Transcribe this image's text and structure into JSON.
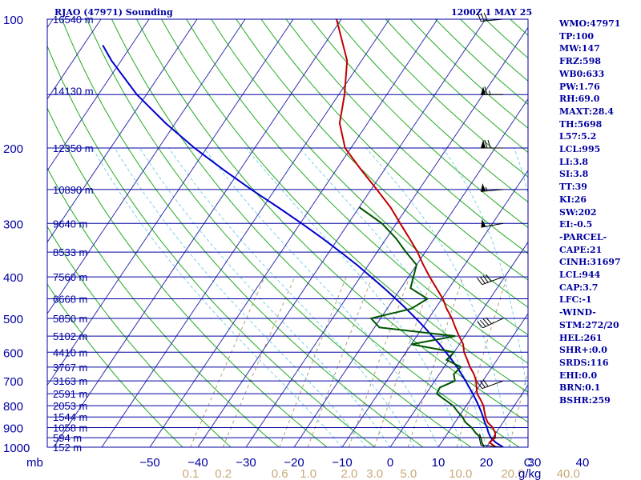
{
  "header": {
    "station": "RJAO (47971) Sounding",
    "time": "1200Z  1 MAY 25"
  },
  "indices": [
    "WMO:47971",
    "TP:100",
    "MW:147",
    "FRZ:598",
    "WB0:633",
    "PW:1.76",
    "RH:69.0",
    "MAXT:28.4",
    "TH:5698",
    "L57:5.2",
    "LCL:995",
    "LI:3.8",
    "SI:3.8",
    "TT:39",
    "KI:26",
    "SW:202",
    "EI:-0.5",
    "-PARCEL-",
    "CAPE:21",
    "CINH:31697",
    "LCL:944",
    "CAP:3.7",
    "LFC:-1",
    "-WIND-",
    "STM:272/20",
    "HEL:261",
    "SHR+:0.0",
    "SRDS:116",
    "EHI:0.0",
    "BRN:0.1",
    "BSHR:259"
  ],
  "colors": {
    "isobar": "#0000a0",
    "isotherm": "#3030b0",
    "dry_adiabat": "#22aa22",
    "moist_adiabat": "#7ad0e8",
    "mixing_ratio": "#b4a078",
    "temperature": "#c00000",
    "dewpoint": "#005500",
    "parcel": "#0000cc",
    "text": "#0000a0",
    "mixing_label": "#c8a878",
    "wind_barb": "#000000"
  },
  "chart_data": {
    "type": "skew-t",
    "pressure_axis_label": "mb",
    "temperature_axis_unit": "C",
    "mixing_ratio_unit": "g/kg",
    "pressure_range": [
      1000,
      100
    ],
    "pressure_ticks": [
      100,
      200,
      300,
      400,
      500,
      600,
      700,
      800,
      900,
      1000
    ],
    "temperature_ticks": [
      -50,
      -40,
      -30,
      -20,
      -10,
      0,
      10,
      20,
      30,
      40
    ],
    "temperature_tick_labels": [
      "−50",
      "−40",
      "−30",
      "−20",
      "−10",
      "0",
      "10",
      "20",
      "30",
      "40"
    ],
    "mixing_ratio_labels": [
      "0.1",
      "0.2",
      "0.6",
      "1.0",
      "2.0",
      "3.0",
      "5.0",
      "10.0",
      "20.0",
      "40.0"
    ],
    "height_labels": [
      {
        "p": 100,
        "label": "16540 m"
      },
      {
        "p": 147,
        "label": "14130 m"
      },
      {
        "p": 200,
        "label": "12350 m"
      },
      {
        "p": 250,
        "label": "10890 m"
      },
      {
        "p": 300,
        "label": "9640 m"
      },
      {
        "p": 350,
        "label": "8533 m"
      },
      {
        "p": 400,
        "label": "7560 m"
      },
      {
        "p": 450,
        "label": "6668 m"
      },
      {
        "p": 500,
        "label": "5850 m"
      },
      {
        "p": 550,
        "label": "5102 m"
      },
      {
        "p": 600,
        "label": "4410 m"
      },
      {
        "p": 650,
        "label": "3767 m"
      },
      {
        "p": 700,
        "label": "3163 m"
      },
      {
        "p": 750,
        "label": "2591 m"
      },
      {
        "p": 800,
        "label": "2053 m"
      },
      {
        "p": 850,
        "label": "1544 m"
      },
      {
        "p": 900,
        "label": "1058 m"
      },
      {
        "p": 950,
        "label": "594 m"
      },
      {
        "p": 1000,
        "label": "152 m"
      }
    ],
    "temperature_profile": [
      [
        1000,
        22
      ],
      [
        975,
        20
      ],
      [
        950,
        20.5
      ],
      [
        925,
        19.8
      ],
      [
        900,
        18.6
      ],
      [
        875,
        16.8
      ],
      [
        850,
        15.6
      ],
      [
        825,
        14.6
      ],
      [
        800,
        13.6
      ],
      [
        775,
        12.2
      ],
      [
        750,
        10.6
      ],
      [
        725,
        9.6
      ],
      [
        700,
        8.6
      ],
      [
        675,
        7.2
      ],
      [
        650,
        5.4
      ],
      [
        625,
        3.8
      ],
      [
        600,
        2.1
      ],
      [
        575,
        0.8
      ],
      [
        550,
        -1.2
      ],
      [
        525,
        -3.2
      ],
      [
        500,
        -5.2
      ],
      [
        475,
        -7.6
      ],
      [
        450,
        -9.8
      ],
      [
        425,
        -12.6
      ],
      [
        400,
        -15.6
      ],
      [
        375,
        -18.6
      ],
      [
        350,
        -21.6
      ],
      [
        325,
        -25.2
      ],
      [
        300,
        -29.2
      ],
      [
        275,
        -33.5
      ],
      [
        250,
        -38.8
      ],
      [
        225,
        -44.8
      ],
      [
        200,
        -51.2
      ],
      [
        175,
        -55.8
      ],
      [
        150,
        -58.8
      ],
      [
        125,
        -63
      ],
      [
        100,
        -71
      ]
    ],
    "dewpoint_profile": [
      [
        1000,
        19.5
      ],
      [
        975,
        18.4
      ],
      [
        950,
        17.5
      ],
      [
        925,
        15.7
      ],
      [
        900,
        14.2
      ],
      [
        875,
        12.2
      ],
      [
        850,
        10.8
      ],
      [
        825,
        9
      ],
      [
        800,
        7.3
      ],
      [
        775,
        4.8
      ],
      [
        750,
        2.2
      ],
      [
        725,
        2
      ],
      [
        700,
        4.2
      ],
      [
        675,
        3
      ],
      [
        650,
        3.5
      ],
      [
        625,
        -0.5
      ],
      [
        600,
        0
      ],
      [
        575,
        -10
      ],
      [
        550,
        -2
      ],
      [
        525,
        -19
      ],
      [
        500,
        -22
      ],
      [
        475,
        -15
      ],
      [
        450,
        -13
      ],
      [
        425,
        -18
      ],
      [
        400,
        -19
      ],
      [
        375,
        -20
      ],
      [
        350,
        -24
      ],
      [
        325,
        -28
      ],
      [
        300,
        -33
      ],
      [
        275,
        -40
      ]
    ],
    "parcel_profile": [
      [
        1000,
        23.5
      ],
      [
        975,
        21.3
      ],
      [
        950,
        19.6
      ],
      [
        925,
        18.4
      ],
      [
        900,
        17.4
      ],
      [
        875,
        16.2
      ],
      [
        850,
        15.1
      ],
      [
        825,
        13.9
      ],
      [
        800,
        12.6
      ],
      [
        775,
        11.2
      ],
      [
        750,
        9.7
      ],
      [
        725,
        8.1
      ],
      [
        700,
        6.4
      ],
      [
        675,
        4.6
      ],
      [
        650,
        2.7
      ],
      [
        625,
        0.6
      ],
      [
        600,
        -1.7
      ],
      [
        575,
        -4.1
      ],
      [
        550,
        -6.8
      ],
      [
        525,
        -9.6
      ],
      [
        500,
        -12.7
      ],
      [
        475,
        -16
      ],
      [
        450,
        -19.6
      ],
      [
        425,
        -23.5
      ],
      [
        400,
        -27.8
      ],
      [
        375,
        -32.4
      ],
      [
        350,
        -37.6
      ],
      [
        325,
        -43.3
      ],
      [
        300,
        -49.7
      ],
      [
        275,
        -56.9
      ],
      [
        250,
        -64.9
      ],
      [
        225,
        -73.4
      ],
      [
        200,
        -82.5
      ],
      [
        175,
        -92
      ],
      [
        150,
        -102
      ],
      [
        125,
        -112
      ],
      [
        115,
        -116
      ]
    ],
    "wind_barbs": [
      {
        "p": 1000,
        "dir": 275,
        "speed": 10
      },
      {
        "p": 950,
        "dir": 270,
        "speed": 5
      },
      {
        "p": 700,
        "dir": 250,
        "speed": 30
      },
      {
        "p": 500,
        "dir": 245,
        "speed": 40
      },
      {
        "p": 400,
        "dir": 250,
        "speed": 40
      },
      {
        "p": 300,
        "dir": 260,
        "speed": 50
      },
      {
        "p": 250,
        "dir": 265,
        "speed": 55
      },
      {
        "p": 200,
        "dir": 270,
        "speed": 70
      },
      {
        "p": 150,
        "dir": 270,
        "speed": 65
      },
      {
        "p": 100,
        "dir": 265,
        "speed": 30
      }
    ]
  }
}
